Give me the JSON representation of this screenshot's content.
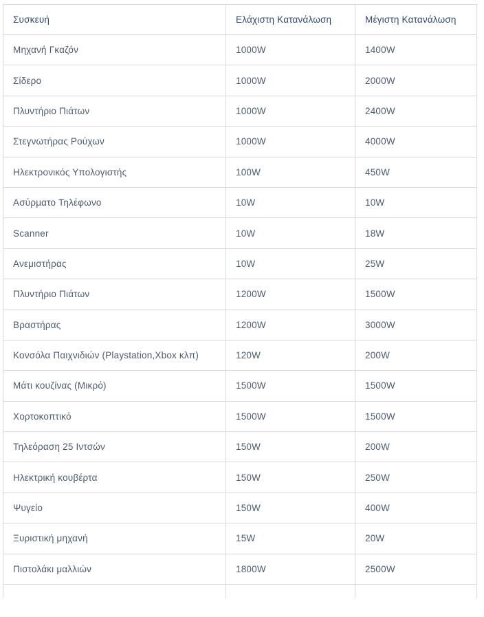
{
  "chart_data": {
    "type": "table",
    "title": "",
    "columns": [
      "Συσκευή",
      "Ελάχιστη Κατανάλωση",
      "Μέγιστη Κατανάλωση"
    ],
    "rows": [
      [
        "Μηχανή Γκαζόν",
        "1000W",
        "1400W"
      ],
      [
        "Σίδερο",
        "1000W",
        "2000W"
      ],
      [
        "Πλυντήριο Πιάτων",
        "1000W",
        "2400W"
      ],
      [
        "Στεγνωτήρας Ρούχων",
        "1000W",
        "4000W"
      ],
      [
        "Ηλεκτρονικός Υπολογιστής",
        "100W",
        "450W"
      ],
      [
        "Ασύρματο Τηλέφωνο",
        "10W",
        "10W"
      ],
      [
        "Scanner",
        "10W",
        "18W"
      ],
      [
        "Ανεμιστήρας",
        "10W",
        "25W"
      ],
      [
        "Πλυντήριο Πιάτων",
        "1200W",
        "1500W"
      ],
      [
        "Βραστήρας",
        "1200W",
        "3000W"
      ],
      [
        "Κονσόλα Παιχνιδιών (Playstation,Xbox κλπ)",
        "120W",
        "200W"
      ],
      [
        "Μάτι κουζίνας (Μικρό)",
        "1500W",
        "1500W"
      ],
      [
        "Χορτοκοπτικό",
        "1500W",
        "1500W"
      ],
      [
        "Τηλεόραση 25 Ιντσών",
        "150W",
        "200W"
      ],
      [
        "Ηλεκτρική κουβέρτα",
        "150W",
        "250W"
      ],
      [
        "Ψυγείο",
        "150W",
        "400W"
      ],
      [
        "Ξυριστική μηχανή",
        "15W",
        "20W"
      ],
      [
        "Πιστολάκι μαλλιών",
        "1800W",
        "2500W"
      ]
    ],
    "partial_empty_row_at_bottom": true,
    "layout_hints": {
      "grid": "full-borders",
      "header_position": "top"
    }
  },
  "colors": {
    "header_text": "#33496b",
    "body_text": "#4d5b6e",
    "border": "#d9d9d9",
    "background": "#ffffff"
  }
}
